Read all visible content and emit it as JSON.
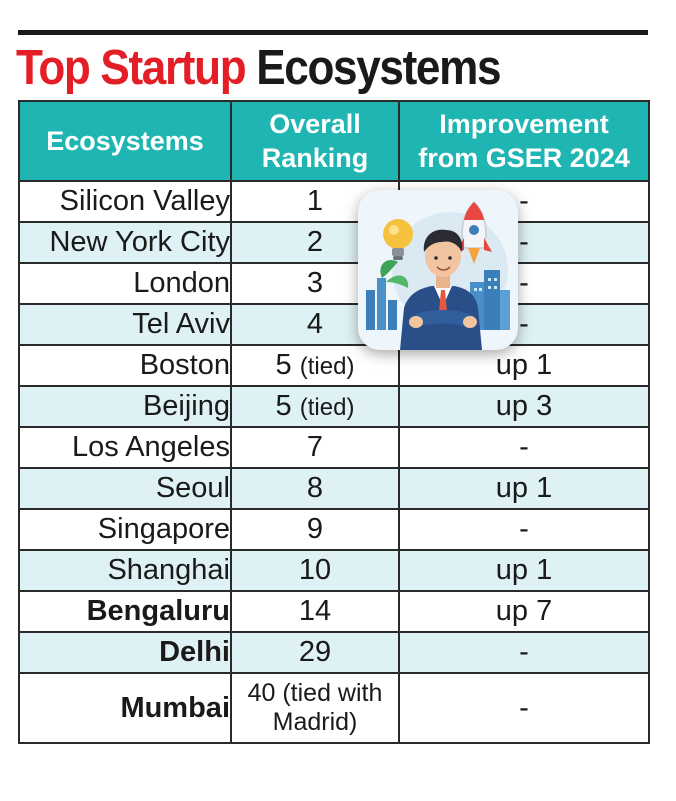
{
  "title": {
    "part_red": "Top Startup",
    "part_dark": "Ecosystems"
  },
  "table": {
    "headers": {
      "ecosystem": "Ecosystems",
      "ranking_line1": "Overall",
      "ranking_line2": "Ranking",
      "improvement_line1": "Improvement",
      "improvement_line2": "from GSER 2024"
    },
    "rows": [
      {
        "name": "Silicon Valley",
        "rank": "1",
        "rank_note": "",
        "improvement": "-"
      },
      {
        "name": "New York City",
        "rank": "2",
        "rank_note": "",
        "improvement": "-"
      },
      {
        "name": "London",
        "rank": "3",
        "rank_note": "",
        "improvement": "-"
      },
      {
        "name": "Tel Aviv",
        "rank": "4",
        "rank_note": "",
        "improvement": "-"
      },
      {
        "name": "Boston",
        "rank": "5",
        "rank_note": "(tied)",
        "improvement": "up 1"
      },
      {
        "name": "Beijing",
        "rank": "5",
        "rank_note": "(tied)",
        "improvement": "up 3"
      },
      {
        "name": "Los Angeles",
        "rank": "7",
        "rank_note": "",
        "improvement": "-"
      },
      {
        "name": "Seoul",
        "rank": "8",
        "rank_note": "",
        "improvement": "up 1"
      },
      {
        "name": "Singapore",
        "rank": "9",
        "rank_note": "",
        "improvement": "-"
      },
      {
        "name": "Shanghai",
        "rank": "10",
        "rank_note": "",
        "improvement": "up 1"
      },
      {
        "name": "Bengaluru",
        "rank": "14",
        "rank_note": "",
        "improvement": "up 7"
      },
      {
        "name": "Delhi",
        "rank": "29",
        "rank_note": "",
        "improvement": "-"
      },
      {
        "name": "Mumbai",
        "rank_line1": "40 (tied with",
        "rank_line2": "Madrid)",
        "improvement": "-"
      }
    ]
  },
  "colors": {
    "header_bg": "#1fb5b2",
    "alt_row_bg": "#def1f4",
    "title_red": "#e41e26"
  },
  "illustration": {
    "icons": [
      "lightbulb-icon",
      "rocket-icon",
      "businessman-icon",
      "city-buildings-icon",
      "bar-chart-icon"
    ]
  }
}
